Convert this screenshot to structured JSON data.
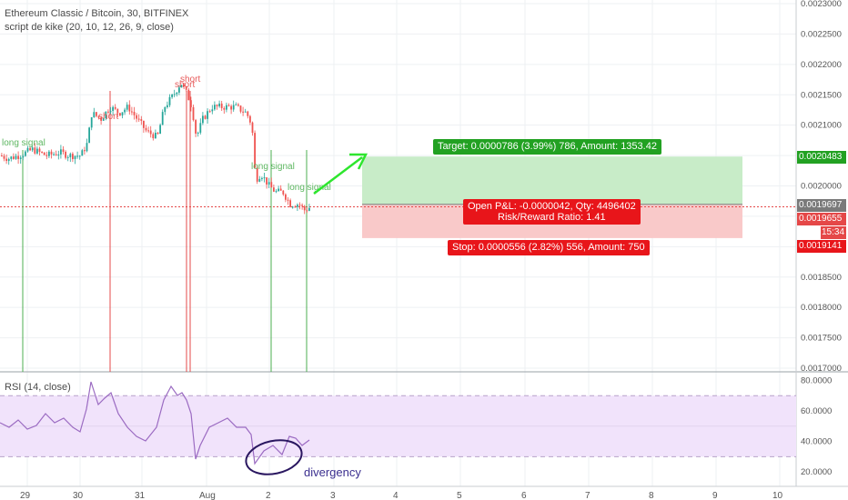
{
  "header": {
    "title": "Ethereum Classic / Bitcoin, 30, BITFINEX",
    "indicator": "script de kike (20, 10, 12, 26, 9, close)"
  },
  "rsi_header": "RSI (14, close)",
  "position": {
    "target_label": "Target: 0.0000786 (3.99%) 786, Amount: 1353.42",
    "pnl_line1": "Open P&L: -0.0000042, Qty: 4496402",
    "pnl_line2": "Risk/Reward Ratio: 1.41",
    "stop_label": "Stop: 0.0000556 (2.82%) 556, Amount: 750"
  },
  "price_tags": {
    "target": "0.0020483",
    "entry": "0.0019697",
    "current": "0.0019655",
    "countdown": "15:34",
    "stop": "0.0019141"
  },
  "annotation": "divergency",
  "colors": {
    "up": "#26a69a",
    "down": "#ef5350",
    "target_zone": "#c8ecc8",
    "stop_zone": "#f9c9c9",
    "target_label_bg": "#22a122",
    "stop_label_bg": "#e8151a",
    "rsi_fill": "#f1e3fb",
    "rsi_line": "#9b6bc2",
    "signal_green": "#4caf50",
    "signal_red": "#e54848",
    "arrow": "#2ee62e",
    "entry_line": "#808080",
    "current_line": "#e54848"
  },
  "chart_data": {
    "type": "candlestick",
    "price_axis": {
      "ticks": [
        "0.0023000",
        "0.0022500",
        "0.0022000",
        "0.0021500",
        "0.0021000",
        "0.0020500",
        "0.0020000",
        "0.0019500",
        "0.0019000",
        "0.0018500",
        "0.0018000",
        "0.0017500",
        "0.0017000"
      ],
      "values": [
        0.0023,
        0.00225,
        0.0022,
        0.00215,
        0.0021,
        0.00205,
        0.002,
        0.00195,
        0.0019,
        0.00185,
        0.0018,
        0.00175,
        0.0017
      ]
    },
    "time_axis": [
      "29",
      "30",
      "31",
      "Aug",
      "2",
      "3",
      "4",
      "5",
      "6",
      "7",
      "8",
      "9",
      "10"
    ],
    "rsi_axis": {
      "ticks": [
        "80.0000",
        "60.0000",
        "40.0000",
        "20.0000"
      ],
      "values": [
        80,
        60,
        40,
        20
      ],
      "upper_band": 70,
      "lower_band": 30
    },
    "price_path": [
      [
        0,
        0.00205
      ],
      [
        8,
        0.002045
      ],
      [
        20,
        0.00205
      ],
      [
        35,
        0.00206
      ],
      [
        50,
        0.00205
      ],
      [
        65,
        0.002055
      ],
      [
        75,
        0.00205
      ],
      [
        88,
        0.00205
      ],
      [
        95,
        0.00207
      ],
      [
        100,
        0.00212
      ],
      [
        110,
        0.00211
      ],
      [
        120,
        0.00213
      ],
      [
        130,
        0.00212
      ],
      [
        140,
        0.00213
      ],
      [
        150,
        0.00211
      ],
      [
        160,
        0.00209
      ],
      [
        172,
        0.00208
      ],
      [
        180,
        0.00213
      ],
      [
        190,
        0.00215
      ],
      [
        198,
        0.00217
      ],
      [
        205,
        0.00215
      ],
      [
        210,
        0.00213
      ],
      [
        215,
        0.00208
      ],
      [
        222,
        0.00211
      ],
      [
        232,
        0.00213
      ],
      [
        245,
        0.00213
      ],
      [
        258,
        0.00213
      ],
      [
        270,
        0.00212
      ],
      [
        276,
        0.0021
      ],
      [
        280,
        0.00201
      ],
      [
        286,
        0.00202
      ],
      [
        295,
        0.002
      ],
      [
        302,
        0.00199
      ],
      [
        310,
        0.00199
      ],
      [
        318,
        0.00197
      ],
      [
        328,
        0.00197
      ],
      [
        334,
        0.00196
      ],
      [
        340,
        0.001965
      ]
    ],
    "rsi_path": [
      [
        0,
        465
      ],
      [
        10,
        470
      ],
      [
        20,
        462
      ],
      [
        30,
        472
      ],
      [
        40,
        468
      ],
      [
        50,
        455
      ],
      [
        60,
        465
      ],
      [
        70,
        460
      ],
      [
        80,
        470
      ],
      [
        88,
        475
      ],
      [
        95,
        450
      ],
      [
        100,
        420
      ],
      [
        108,
        445
      ],
      [
        115,
        438
      ],
      [
        122,
        432
      ],
      [
        130,
        455
      ],
      [
        140,
        470
      ],
      [
        150,
        480
      ],
      [
        160,
        485
      ],
      [
        172,
        470
      ],
      [
        180,
        440
      ],
      [
        188,
        425
      ],
      [
        195,
        435
      ],
      [
        200,
        432
      ],
      [
        205,
        440
      ],
      [
        210,
        455
      ],
      [
        215,
        505
      ],
      [
        220,
        490
      ],
      [
        230,
        470
      ],
      [
        240,
        465
      ],
      [
        250,
        460
      ],
      [
        260,
        470
      ],
      [
        270,
        470
      ],
      [
        276,
        478
      ],
      [
        280,
        510
      ],
      [
        290,
        496
      ],
      [
        300,
        490
      ],
      [
        310,
        500
      ],
      [
        318,
        480
      ],
      [
        325,
        482
      ],
      [
        332,
        490
      ],
      [
        340,
        484
      ]
    ],
    "signals": [
      {
        "label": "long signal",
        "x": 25,
        "kind": "long"
      },
      {
        "label": "short",
        "x": 121,
        "kind": "short"
      },
      {
        "label": "short",
        "x": 205,
        "kind": "short"
      },
      {
        "label": "long signal",
        "x": 298,
        "kind": "long"
      },
      {
        "label": "long signal",
        "x": 337,
        "kind": "long"
      }
    ]
  }
}
